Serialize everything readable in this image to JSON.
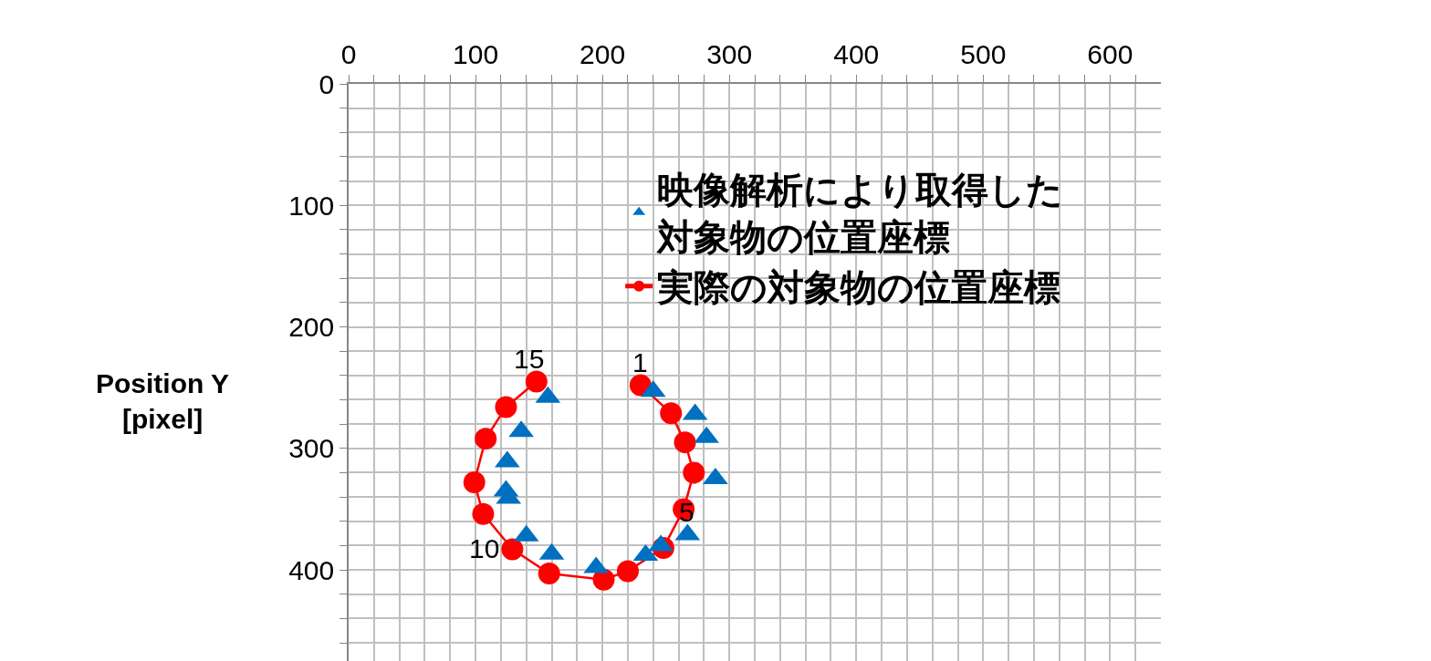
{
  "chart_data": {
    "type": "scatter",
    "ylabel": "Position Y\n[pixel]",
    "xlim": [
      0,
      640
    ],
    "ylim": [
      475,
      0
    ],
    "xticks": [
      0,
      {
        "value": 20,
        "label": null
      },
      {
        "value": 40,
        "label": null
      },
      {
        "value": 60,
        "label": null
      },
      {
        "value": 80,
        "label": null
      },
      100,
      {
        "value": 120,
        "label": null
      },
      {
        "value": 140,
        "label": null
      },
      {
        "value": 160,
        "label": null
      },
      {
        "value": 180,
        "label": null
      },
      200,
      {
        "value": 220,
        "label": null
      },
      {
        "value": 240,
        "label": null
      },
      {
        "value": 260,
        "label": null
      },
      {
        "value": 280,
        "label": null
      },
      300,
      {
        "value": 320,
        "label": null
      },
      {
        "value": 340,
        "label": null
      },
      {
        "value": 360,
        "label": null
      },
      {
        "value": 380,
        "label": null
      },
      400,
      {
        "value": 420,
        "label": null
      },
      {
        "value": 440,
        "label": null
      },
      {
        "value": 460,
        "label": null
      },
      {
        "value": 480,
        "label": null
      },
      500,
      {
        "value": 520,
        "label": null
      },
      {
        "value": 540,
        "label": null
      },
      {
        "value": 560,
        "label": null
      },
      {
        "value": 580,
        "label": null
      },
      600,
      {
        "value": 620,
        "label": null
      }
    ],
    "yticks": [
      0,
      {
        "value": 20,
        "label": null
      },
      {
        "value": 40,
        "label": null
      },
      {
        "value": 60,
        "label": null
      },
      {
        "value": 80,
        "label": null
      },
      100,
      {
        "value": 120,
        "label": null
      },
      {
        "value": 140,
        "label": null
      },
      {
        "value": 160,
        "label": null
      },
      {
        "value": 180,
        "label": null
      },
      200,
      {
        "value": 220,
        "label": null
      },
      {
        "value": 240,
        "label": null
      },
      {
        "value": 260,
        "label": null
      },
      {
        "value": 280,
        "label": null
      },
      300,
      {
        "value": 320,
        "label": null
      },
      {
        "value": 340,
        "label": null
      },
      {
        "value": 360,
        "label": null
      },
      {
        "value": 380,
        "label": null
      },
      400,
      {
        "value": 420,
        "label": null
      },
      {
        "value": 440,
        "label": null
      },
      {
        "value": 460,
        "label": null
      }
    ],
    "grid": true,
    "legend": "top right",
    "series": [
      {
        "name": "映像解析により取得した対象物の位置座標",
        "color": "#0070c0",
        "marker": "triangle",
        "line_style": "none",
        "x": [
          240,
          273,
          282,
          289,
          267,
          246,
          234,
          195,
          160,
          140,
          126,
          124,
          125,
          136,
          157
        ],
        "values": [
          253,
          272,
          291,
          325,
          371,
          380,
          388,
          398,
          387,
          372,
          341,
          335,
          311,
          286,
          258
        ]
      },
      {
        "name": "実際の対象物の位置座標",
        "type": "line",
        "color": "#ff0000",
        "marker": "circle",
        "line_style": "solid",
        "x": [
          230,
          254,
          265,
          272,
          264,
          248,
          220,
          201,
          158,
          129,
          106,
          99,
          108,
          124,
          148
        ],
        "values": [
          248,
          271,
          295,
          320,
          350,
          382,
          401,
          408,
          403,
          383,
          354,
          328,
          292,
          266,
          245
        ]
      }
    ],
    "annotations": [
      {
        "text": "1",
        "x": 230,
        "y": 248
      },
      {
        "text": "5",
        "x": 267,
        "y": 371
      },
      {
        "text": "10",
        "x": 129,
        "y": 383
      },
      {
        "text": "15",
        "x": 148,
        "y": 245
      }
    ]
  }
}
